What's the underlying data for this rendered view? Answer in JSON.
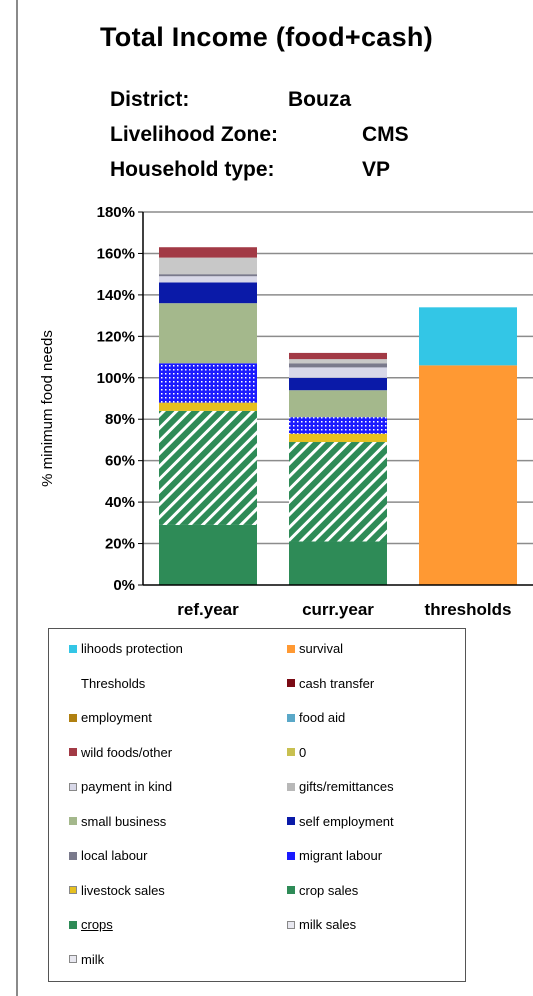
{
  "chart_data": {
    "type": "bar",
    "stacked": true,
    "title": "Total Income (food+cash)",
    "ylabel": "% minimum food needs",
    "ylim": [
      0,
      180
    ],
    "yticks": [
      "0%",
      "20%",
      "40%",
      "60%",
      "80%",
      "100%",
      "120%",
      "140%",
      "160%",
      "180%"
    ],
    "categories": [
      "ref.year",
      "curr.year",
      "thresholds"
    ],
    "grid": true,
    "series": [
      {
        "name": "crops",
        "color": "#2e8b57",
        "values": [
          29,
          21,
          0
        ]
      },
      {
        "name": "crop sales",
        "color": "#2e8b57",
        "pattern": "hatch",
        "values": [
          55,
          48,
          0
        ]
      },
      {
        "name": "livestock sales",
        "color": "#e6c020",
        "values": [
          4,
          4,
          0
        ]
      },
      {
        "name": "migrant labour",
        "color": "#1a1aff",
        "pattern": "dots",
        "values": [
          19,
          8,
          0
        ]
      },
      {
        "name": "small business",
        "color": "#a4b88c",
        "values": [
          29,
          13,
          0
        ]
      },
      {
        "name": "self employment",
        "color": "#0a1aa8",
        "values": [
          10,
          6,
          0
        ]
      },
      {
        "name": "payment in kind",
        "color": "#d8d8e8",
        "values": [
          3,
          5,
          0
        ]
      },
      {
        "name": "local labour",
        "color": "#7a7a8c",
        "values": [
          1,
          2,
          0
        ]
      },
      {
        "name": "gifts/remittances",
        "color": "#c8c8c8",
        "values": [
          8,
          2,
          0
        ]
      },
      {
        "name": "wild foods/other",
        "color": "#a23a45",
        "values": [
          5,
          3,
          0
        ]
      },
      {
        "name": "survival",
        "color": "#ff9933",
        "values": [
          0,
          0,
          106
        ]
      },
      {
        "name": "livelihoods protection",
        "color": "#33c6e6",
        "values": [
          0,
          0,
          28
        ]
      }
    ],
    "legend": {
      "placement": "bottom",
      "entries": [
        {
          "label": "lihoods protection",
          "color": "#33c6e6"
        },
        {
          "label": "survival",
          "color": "#ff9933"
        },
        {
          "label": "Thresholds",
          "color": ""
        },
        {
          "label": "cash transfer",
          "color": "#7a0a14"
        },
        {
          "label": "employment",
          "color": "#b08010"
        },
        {
          "label": "food aid",
          "color": "#5aa8c8"
        },
        {
          "label": "wild foods/other",
          "color": "#a23a45"
        },
        {
          "label": "0",
          "color": "#c8c050"
        },
        {
          "label": "payment in kind",
          "color": "#d8d8e8"
        },
        {
          "label": "gifts/remittances",
          "color": "#b8b8b8"
        },
        {
          "label": "small business",
          "color": "#a4b88c"
        },
        {
          "label": "self employment",
          "color": "#0a1aa8"
        },
        {
          "label": "local labour",
          "color": "#7a7a8c"
        },
        {
          "label": "migrant labour",
          "color": "#1a1aff"
        },
        {
          "label": "livestock sales",
          "color": "#e6c020"
        },
        {
          "label": "crop sales",
          "color": "#2e8b57"
        },
        {
          "label": "crops",
          "color": "#2e8b57",
          "underline": true
        },
        {
          "label": "milk sales",
          "color": "#e8e8f0"
        },
        {
          "label": "milk",
          "color": "#e8e8f0"
        }
      ]
    }
  },
  "info": {
    "district_label": "District:",
    "district_value": "Bouza",
    "zone_label": "Livelihood Zone:",
    "zone_value": "CMS",
    "household_label": "Household type:",
    "household_value": "VP"
  }
}
